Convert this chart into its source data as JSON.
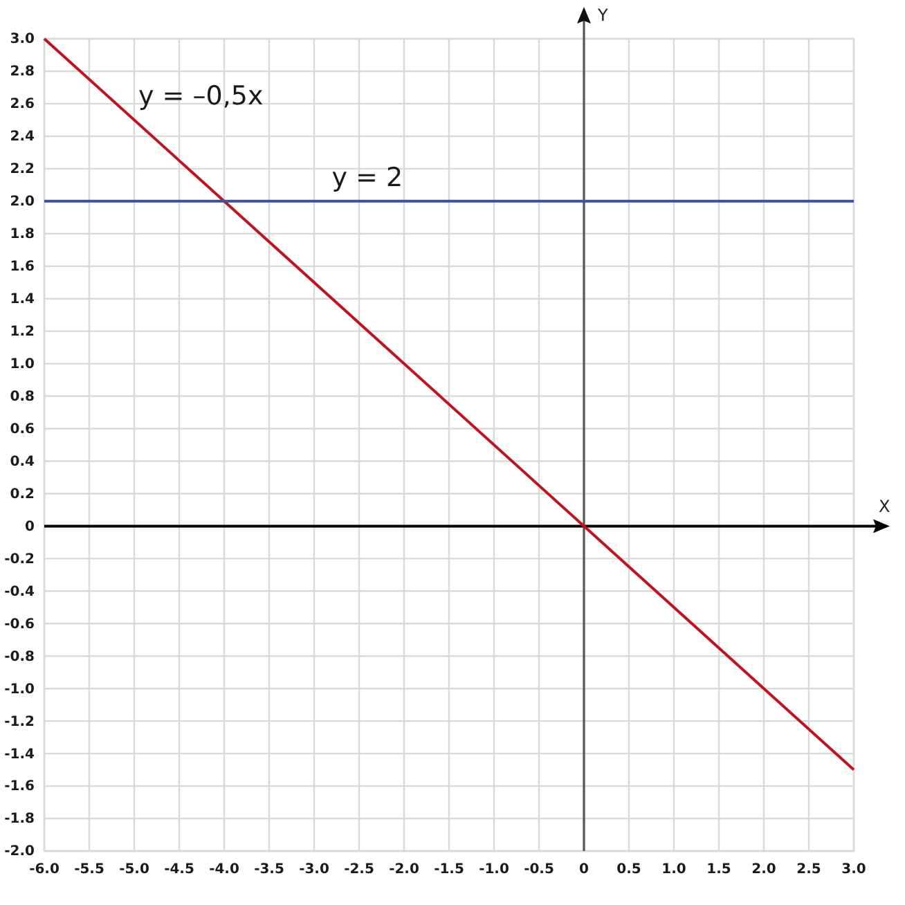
{
  "chart_data": {
    "type": "line",
    "xlabel": "X",
    "ylabel": "Y",
    "x": [
      -6,
      3
    ],
    "series": [
      {
        "color": "#c0141c",
        "values": [
          3,
          -1.5
        ]
      },
      {
        "color": "#3a52a3",
        "values": [
          2,
          2
        ]
      }
    ],
    "annotations": [
      {
        "text": "y = –0,5x",
        "x": -5,
        "y": 2.5
      },
      {
        "text": "y = 2",
        "x": -2.85,
        "y": 2
      }
    ],
    "xlim": [
      -6,
      3
    ],
    "ylim": [
      -2,
      3
    ],
    "xticks": [
      {
        "value": -6,
        "label": "-6.0"
      },
      -5.5,
      {
        "value": -5,
        "label": "-5.0"
      },
      -4.5,
      {
        "value": -4,
        "label": "-4.0"
      },
      -3.5,
      {
        "value": -3,
        "label": "-3.0"
      },
      -2.5,
      {
        "value": -2,
        "label": "-2.0"
      },
      -1.5,
      {
        "value": -1,
        "label": "-1.0"
      },
      -0.5,
      0,
      0.5,
      {
        "value": 1,
        "label": "1.0"
      },
      1.5,
      {
        "value": 2,
        "label": "2.0"
      },
      2.5,
      {
        "value": 3,
        "label": "3.0"
      }
    ],
    "yticks": [
      {
        "value": 3,
        "label": "3.0"
      },
      2.8,
      2.6,
      2.4,
      2.2,
      {
        "value": 2,
        "label": "2.0"
      },
      1.8,
      1.6,
      1.4,
      1.2,
      {
        "value": 1,
        "label": "1.0"
      },
      0.8,
      0.6,
      0.4,
      0.2,
      0,
      -0.2,
      -0.4,
      -0.6,
      -0.8,
      {
        "value": -1,
        "label": "-1.0"
      },
      -1.2,
      -1.4,
      -1.6,
      -1.8,
      {
        "value": -2,
        "label": "-2.0"
      }
    ],
    "grid": true
  }
}
